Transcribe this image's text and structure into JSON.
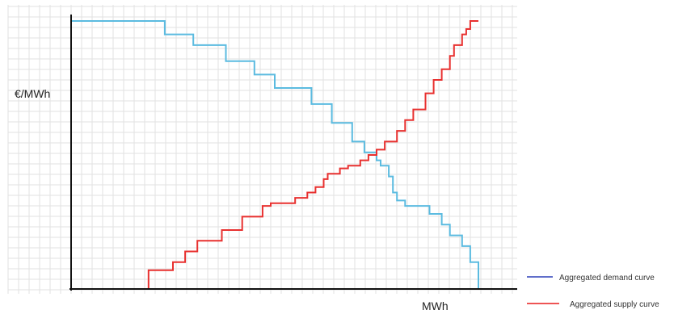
{
  "chart_data": {
    "type": "line",
    "title": "",
    "xlabel": "MWh",
    "ylabel": "€/MWh",
    "grid": true,
    "legend_position": "bottom-right",
    "xlim": [
      0,
      100
    ],
    "ylim": [
      0,
      100
    ],
    "colors": {
      "demand": "#5bbbe0",
      "supply": "#e8302f",
      "demand_legend": "#2c3fb8",
      "supply_legend": "#e81c1c"
    },
    "series": [
      {
        "name": "Aggregated demand curve",
        "step": true,
        "points": [
          [
            0,
            100
          ],
          [
            23,
            100
          ],
          [
            23,
            95
          ],
          [
            30,
            95
          ],
          [
            30,
            91
          ],
          [
            38,
            91
          ],
          [
            38,
            85
          ],
          [
            45,
            85
          ],
          [
            45,
            80
          ],
          [
            50,
            80
          ],
          [
            50,
            75
          ],
          [
            59,
            75
          ],
          [
            59,
            69
          ],
          [
            64,
            69
          ],
          [
            64,
            62
          ],
          [
            69,
            62
          ],
          [
            69,
            55
          ],
          [
            72,
            55
          ],
          [
            72,
            51
          ],
          [
            75,
            51
          ],
          [
            75,
            48
          ],
          [
            76,
            48
          ],
          [
            76,
            46
          ],
          [
            78,
            46
          ],
          [
            78,
            42
          ],
          [
            79,
            42
          ],
          [
            79,
            36
          ],
          [
            80,
            36
          ],
          [
            80,
            33
          ],
          [
            82,
            33
          ],
          [
            82,
            31
          ],
          [
            88,
            31
          ],
          [
            88,
            28
          ],
          [
            91,
            28
          ],
          [
            91,
            24
          ],
          [
            93,
            24
          ],
          [
            93,
            20
          ],
          [
            96,
            20
          ],
          [
            96,
            16
          ],
          [
            98,
            16
          ],
          [
            98,
            10
          ],
          [
            100,
            10
          ],
          [
            100,
            0
          ]
        ]
      },
      {
        "name": "Aggregated supply curve",
        "step": true,
        "points": [
          [
            0,
            0
          ],
          [
            19,
            0
          ],
          [
            19,
            7
          ],
          [
            25,
            7
          ],
          [
            25,
            10
          ],
          [
            28,
            10
          ],
          [
            28,
            14
          ],
          [
            31,
            14
          ],
          [
            31,
            18
          ],
          [
            37,
            18
          ],
          [
            37,
            22
          ],
          [
            42,
            22
          ],
          [
            42,
            27
          ],
          [
            47,
            27
          ],
          [
            47,
            31
          ],
          [
            49,
            31
          ],
          [
            49,
            32
          ],
          [
            55,
            32
          ],
          [
            55,
            34
          ],
          [
            58,
            34
          ],
          [
            58,
            36
          ],
          [
            60,
            36
          ],
          [
            60,
            38
          ],
          [
            62,
            38
          ],
          [
            62,
            41
          ],
          [
            63,
            41
          ],
          [
            63,
            43
          ],
          [
            66,
            43
          ],
          [
            66,
            45
          ],
          [
            68,
            45
          ],
          [
            68,
            46
          ],
          [
            71,
            46
          ],
          [
            71,
            48
          ],
          [
            73,
            48
          ],
          [
            73,
            50
          ],
          [
            75,
            50
          ],
          [
            75,
            52
          ],
          [
            77,
            52
          ],
          [
            77,
            55
          ],
          [
            80,
            55
          ],
          [
            80,
            59
          ],
          [
            82,
            59
          ],
          [
            82,
            63
          ],
          [
            84,
            63
          ],
          [
            84,
            67
          ],
          [
            87,
            67
          ],
          [
            87,
            73
          ],
          [
            89,
            73
          ],
          [
            89,
            78
          ],
          [
            91,
            78
          ],
          [
            91,
            82
          ],
          [
            93,
            82
          ],
          [
            93,
            87
          ],
          [
            94,
            87
          ],
          [
            94,
            91
          ],
          [
            96,
            91
          ],
          [
            96,
            95
          ],
          [
            97,
            95
          ],
          [
            97,
            97
          ],
          [
            98,
            97
          ],
          [
            98,
            100
          ],
          [
            100,
            100
          ]
        ]
      }
    ]
  }
}
